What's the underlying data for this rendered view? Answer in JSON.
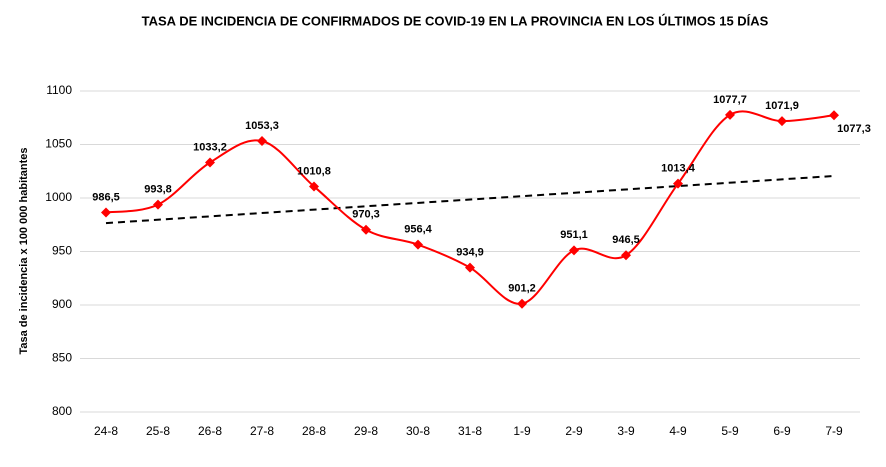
{
  "chart_data": {
    "type": "line",
    "title": "TASA DE INCIDENCIA  DE CONFIRMADOS DE COVID-19 EN LA PROVINCIA EN LOS ÚLTIMOS 15 DÍAS",
    "y_label": "Tasa de incidencia  x 100 000 habitantes",
    "categories": [
      "24-8",
      "25-8",
      "26-8",
      "27-8",
      "28-8",
      "29-8",
      "30-8",
      "31-8",
      "1-9",
      "2-9",
      "3-9",
      "4-9",
      "5-9",
      "6-9",
      "7-9"
    ],
    "series": [
      {
        "color": "#ff0000",
        "values": [
          986.5,
          993.8,
          1033.2,
          1053.3,
          1010.8,
          970.3,
          956.4,
          934.9,
          901.2,
          951.1,
          946.5,
          1013.4,
          1077.7,
          1071.9,
          1077.3
        ],
        "value_labels": [
          "986,5",
          "993,8",
          "1033,2",
          "1053,3",
          "1010,8",
          "970,3",
          "956,4",
          "934,9",
          "901,2",
          "951,1",
          "946,5",
          "1013,4",
          "1077,7",
          "1071,9",
          "1077,3"
        ]
      }
    ],
    "trendline": true,
    "smooth": true,
    "ylim": [
      800,
      1100
    ],
    "yticks": [
      800,
      850,
      900,
      950,
      1000,
      1050,
      1100
    ],
    "grid": true
  }
}
